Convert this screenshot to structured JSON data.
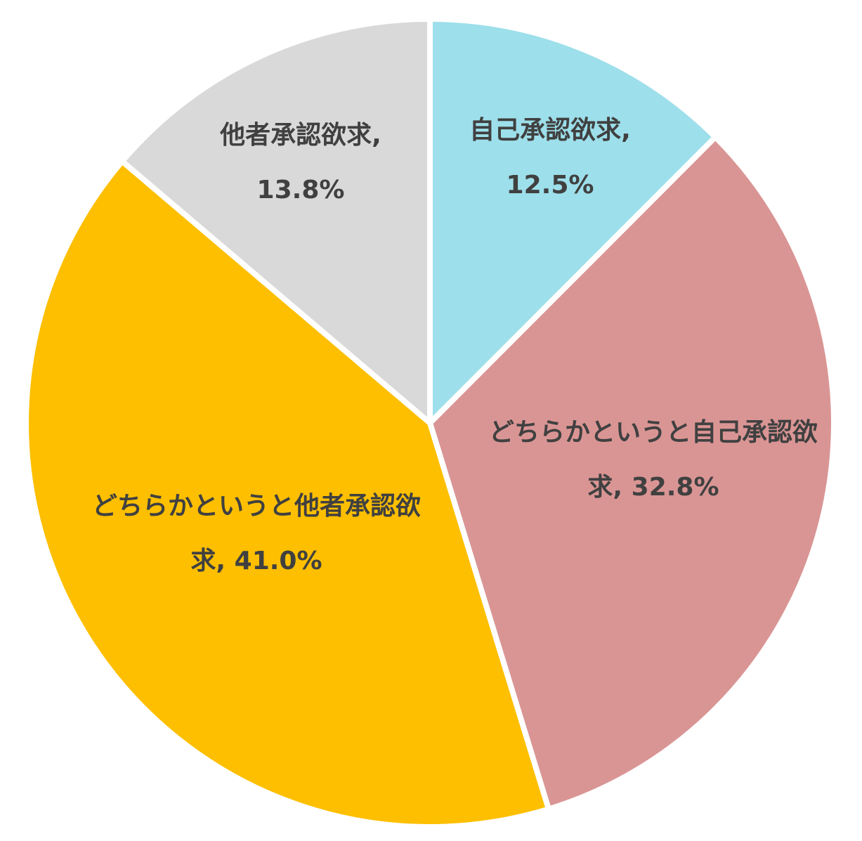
{
  "chart_data": {
    "type": "pie",
    "categories": [
      "自己承認欲求,",
      "どちらかというと自己承認欲求,",
      "どちらかというと他者承認欲求,",
      "他者承認欲求,"
    ],
    "values": [
      12.5,
      32.8,
      41.0,
      13.8
    ],
    "value_labels": [
      "12.5%",
      "32.8%",
      "41.0%",
      "13.8%"
    ],
    "colors": [
      "#9ddfea",
      "#d99594",
      "#fdbf00",
      "#d9d9d9"
    ]
  }
}
